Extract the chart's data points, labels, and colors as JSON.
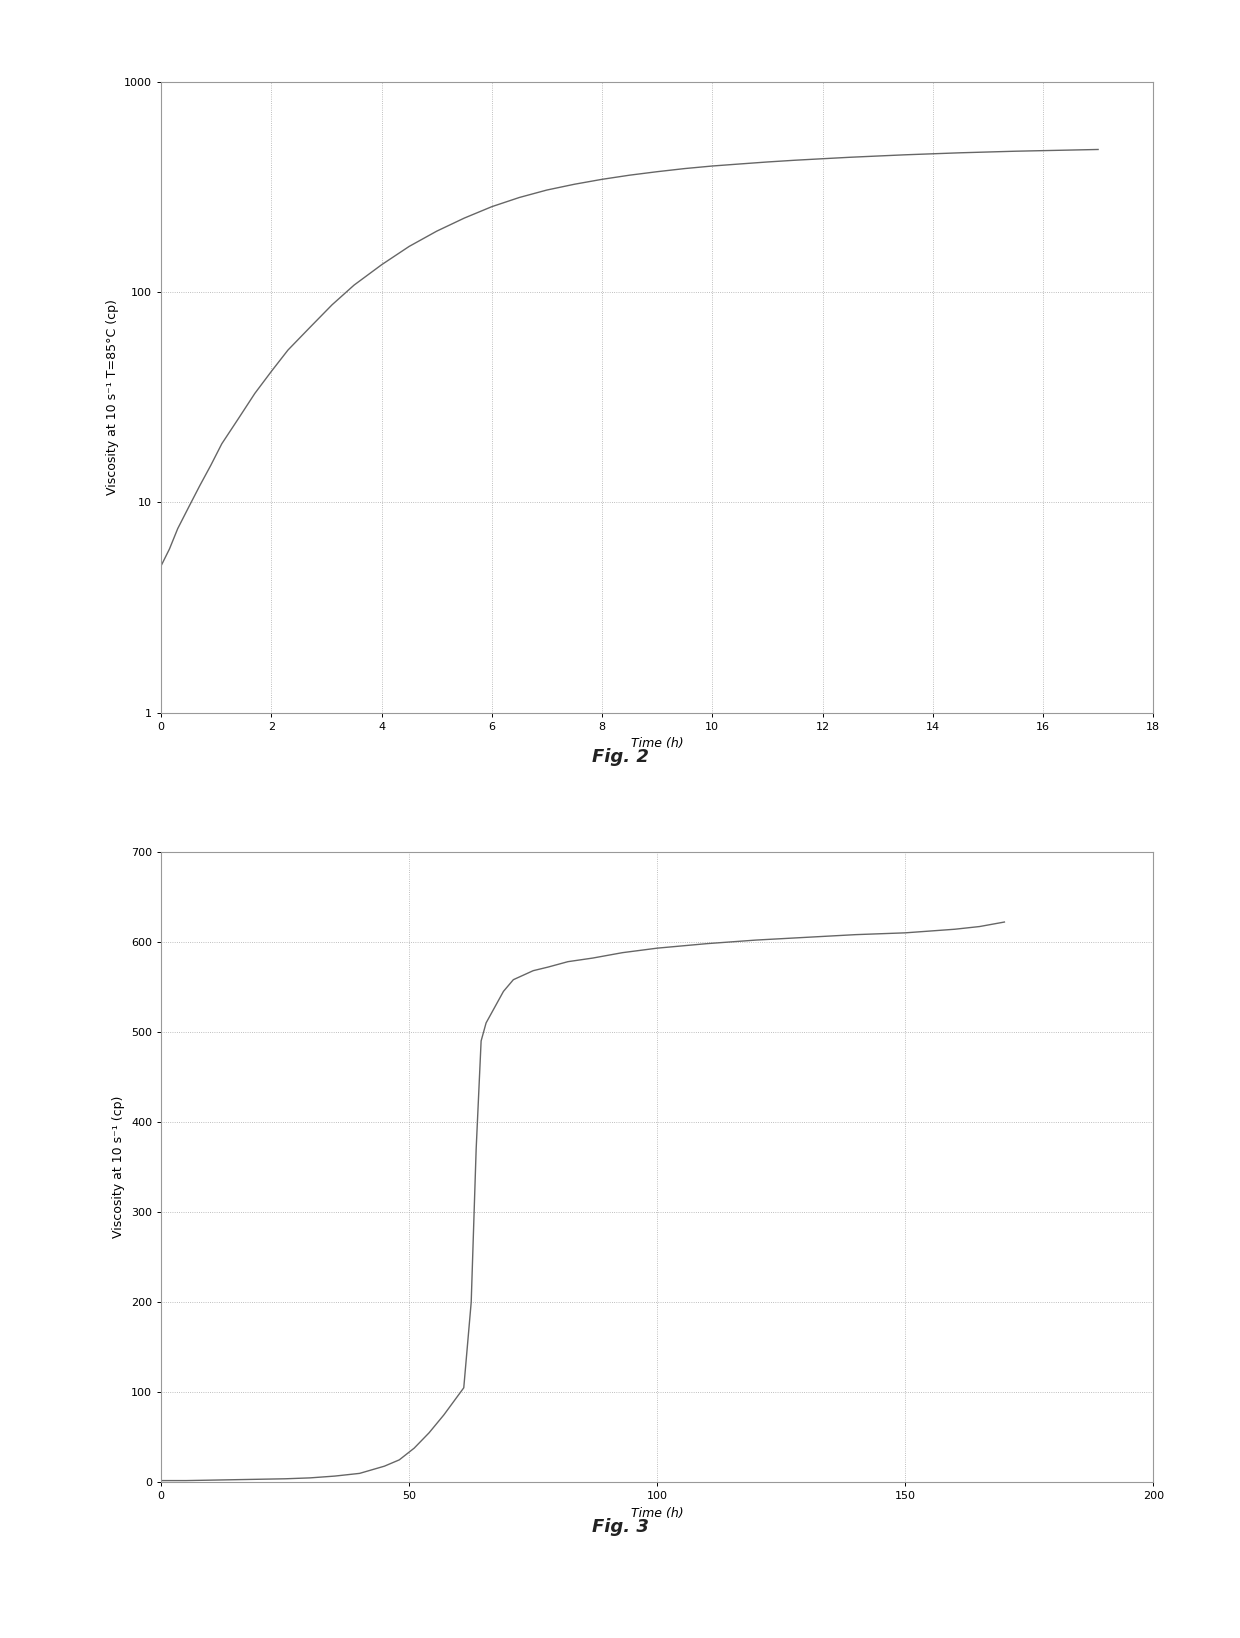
{
  "fig2": {
    "ylabel": "Viscosity at 10 s⁻¹ T=85°C (cp)",
    "xlabel": "Time (h)",
    "caption": "Fig. 2",
    "x": [
      0.0,
      0.15,
      0.3,
      0.5,
      0.7,
      0.9,
      1.1,
      1.4,
      1.7,
      2.0,
      2.3,
      2.7,
      3.1,
      3.5,
      4.0,
      4.5,
      5.0,
      5.5,
      6.0,
      6.5,
      7.0,
      7.5,
      8.0,
      8.5,
      9.0,
      9.5,
      10.0,
      10.5,
      11.0,
      11.5,
      12.0,
      12.5,
      13.0,
      13.5,
      14.0,
      14.5,
      15.0,
      15.5,
      16.0,
      16.5,
      17.0
    ],
    "y": [
      5.0,
      6.0,
      7.5,
      9.5,
      12.0,
      15.0,
      19.0,
      25.0,
      33.0,
      42.0,
      53.0,
      68.0,
      87.0,
      108.0,
      135.0,
      165.0,
      195.0,
      225.0,
      255.0,
      282.0,
      306.0,
      326.0,
      344.0,
      360.0,
      374.0,
      387.0,
      398.0,
      407.0,
      416.0,
      424.0,
      431.0,
      438.0,
      444.0,
      450.0,
      455.0,
      460.0,
      464.0,
      468.0,
      471.0,
      474.0,
      477.0
    ],
    "ylim": [
      1,
      1000
    ],
    "xlim": [
      0,
      18
    ],
    "xticks": [
      0,
      2,
      4,
      6,
      8,
      10,
      12,
      14,
      16,
      18
    ],
    "yticks": [
      1,
      10,
      100,
      1000
    ],
    "line_color": "#666666",
    "line_width": 1.0,
    "grid_color": "#aaaaaa",
    "bg_color": "#ffffff",
    "box_color": "#999999"
  },
  "fig3": {
    "ylabel": "Viscosity at 10 s⁻¹ (cp)",
    "xlabel": "Time (h)",
    "caption": "Fig. 3",
    "x": [
      0.0,
      5.0,
      10.0,
      15.0,
      20.0,
      25.0,
      30.0,
      35.0,
      40.0,
      45.0,
      48.0,
      51.0,
      54.0,
      57.0,
      59.0,
      61.0,
      62.5,
      63.5,
      64.5,
      65.5,
      67.0,
      69.0,
      71.0,
      73.0,
      75.0,
      78.0,
      82.0,
      87.0,
      93.0,
      100.0,
      110.0,
      120.0,
      130.0,
      140.0,
      150.0,
      160.0,
      165.0,
      170.0
    ],
    "y": [
      2.0,
      2.0,
      2.5,
      3.0,
      3.5,
      4.0,
      5.0,
      7.0,
      10.0,
      18.0,
      25.0,
      38.0,
      55.0,
      75.0,
      90.0,
      105.0,
      200.0,
      370.0,
      490.0,
      510.0,
      525.0,
      545.0,
      558.0,
      563.0,
      568.0,
      572.0,
      578.0,
      582.0,
      588.0,
      593.0,
      598.0,
      602.0,
      605.0,
      608.0,
      610.0,
      614.0,
      617.0,
      622.0
    ],
    "ylim": [
      0,
      700
    ],
    "xlim": [
      0,
      200
    ],
    "xticks": [
      0,
      50,
      100,
      150,
      200
    ],
    "yticks": [
      0,
      100,
      200,
      300,
      400,
      500,
      600,
      700
    ],
    "line_color": "#666666",
    "line_width": 1.0,
    "grid_color": "#aaaaaa",
    "bg_color": "#ffffff",
    "box_color": "#999999"
  },
  "figure_bg": "#ffffff",
  "caption_fontsize": 13,
  "label_fontsize": 9,
  "tick_fontsize": 8
}
